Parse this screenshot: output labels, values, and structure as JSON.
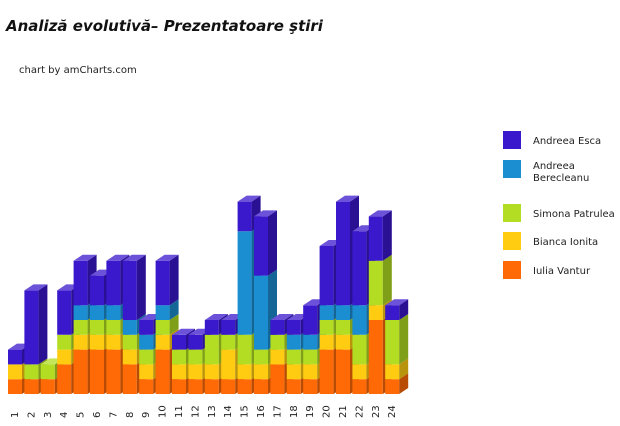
{
  "title": "Analiză evolutivă– Prezentatoare ştiri",
  "credit": "chart by amCharts.com",
  "chart_data": {
    "type": "bar",
    "stacked": true,
    "three_d": true,
    "categories": [
      "1",
      "2",
      "3",
      "4",
      "5",
      "6",
      "7",
      "8",
      "9",
      "10",
      "11",
      "12",
      "13",
      "14",
      "15",
      "16",
      "17",
      "18",
      "19",
      "20",
      "21",
      "22",
      "23",
      "24"
    ],
    "series": [
      {
        "name": "Iulia Vantur",
        "color": "#ff6a06",
        "values": [
          1,
          1,
          1,
          2,
          3,
          3,
          3,
          2,
          1,
          3,
          1,
          1,
          1,
          1,
          1,
          1,
          2,
          1,
          1,
          3,
          3,
          1,
          5,
          1
        ]
      },
      {
        "name": "Bianca Ionita",
        "color": "#ffcc11",
        "values": [
          1,
          0,
          0,
          1,
          1,
          1,
          1,
          1,
          1,
          1,
          1,
          1,
          1,
          2,
          1,
          1,
          1,
          1,
          1,
          1,
          1,
          1,
          1,
          1
        ]
      },
      {
        "name": "Simona Patrulea",
        "color": "#b2dd22",
        "values": [
          0,
          1,
          1,
          1,
          1,
          1,
          1,
          1,
          1,
          1,
          1,
          1,
          2,
          1,
          2,
          1,
          1,
          1,
          1,
          1,
          1,
          2,
          3,
          3
        ]
      },
      {
        "name": "Andreea Berecleanu",
        "color": "#1a8ed0",
        "values": [
          0,
          0,
          0,
          0,
          1,
          1,
          1,
          1,
          1,
          1,
          0,
          0,
          0,
          0,
          7,
          5,
          0,
          1,
          1,
          1,
          1,
          2,
          0,
          0
        ]
      },
      {
        "name": "Andreea Esca",
        "color": "#3a18cc",
        "values": [
          1,
          5,
          0,
          3,
          3,
          2,
          3,
          4,
          1,
          3,
          1,
          1,
          1,
          1,
          2,
          4,
          1,
          1,
          2,
          4,
          7,
          5,
          3,
          1
        ]
      }
    ],
    "legend": {
      "position": "right"
    }
  }
}
